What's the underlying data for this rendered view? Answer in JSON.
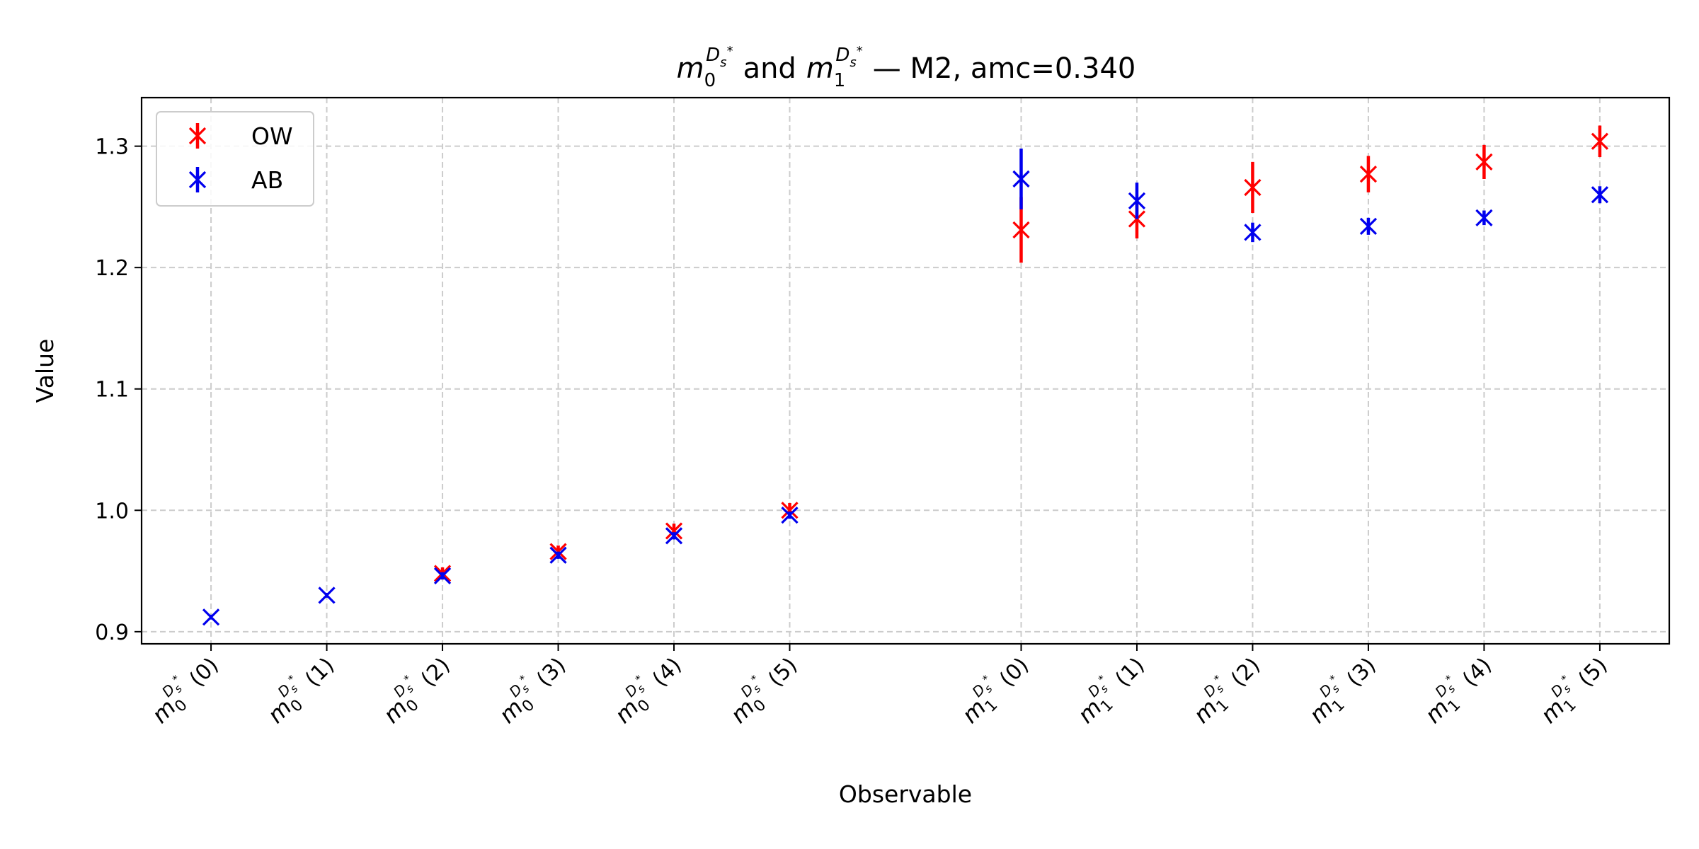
{
  "chart_data": {
    "type": "scatter",
    "title": {
      "m0": "m",
      "m0_sub": "0",
      "m0_sup": "D",
      "m0_sup_sub": "s",
      "m0_sup_star": "*",
      "and": "and",
      "m1": "m",
      "m1_sub": "1",
      "m1_sup": "D",
      "m1_sup_sub": "s",
      "m1_sup_star": "*",
      "suffix": "— M2, amc=0.340"
    },
    "xlabel": "Observable",
    "ylabel": "Value",
    "ylim": [
      0.89,
      1.34
    ],
    "yticks": [
      "0.9",
      "1.0",
      "1.1",
      "1.2",
      "1.3"
    ],
    "ytick_values": [
      0.9,
      1.0,
      1.1,
      1.2,
      1.3
    ],
    "grid": true,
    "legend": "upper-left",
    "categories": [
      {
        "base": "m",
        "sub": "0",
        "sup": "D",
        "supsub": "s",
        "star": "*",
        "arg": "(0)",
        "pos": 0
      },
      {
        "base": "m",
        "sub": "0",
        "sup": "D",
        "supsub": "s",
        "star": "*",
        "arg": "(1)",
        "pos": 1
      },
      {
        "base": "m",
        "sub": "0",
        "sup": "D",
        "supsub": "s",
        "star": "*",
        "arg": "(2)",
        "pos": 2
      },
      {
        "base": "m",
        "sub": "0",
        "sup": "D",
        "supsub": "s",
        "star": "*",
        "arg": "(3)",
        "pos": 3
      },
      {
        "base": "m",
        "sub": "0",
        "sup": "D",
        "supsub": "s",
        "star": "*",
        "arg": "(4)",
        "pos": 4
      },
      {
        "base": "m",
        "sub": "0",
        "sup": "D",
        "supsub": "s",
        "star": "*",
        "arg": "(5)",
        "pos": 5
      },
      {
        "base": "m",
        "sub": "1",
        "sup": "D",
        "supsub": "s",
        "star": "*",
        "arg": "(0)",
        "pos": 7
      },
      {
        "base": "m",
        "sub": "1",
        "sup": "D",
        "supsub": "s",
        "star": "*",
        "arg": "(1)",
        "pos": 8
      },
      {
        "base": "m",
        "sub": "1",
        "sup": "D",
        "supsub": "s",
        "star": "*",
        "arg": "(2)",
        "pos": 9
      },
      {
        "base": "m",
        "sub": "1",
        "sup": "D",
        "supsub": "s",
        "star": "*",
        "arg": "(3)",
        "pos": 10
      },
      {
        "base": "m",
        "sub": "1",
        "sup": "D",
        "supsub": "s",
        "star": "*",
        "arg": "(4)",
        "pos": 11
      },
      {
        "base": "m",
        "sub": "1",
        "sup": "D",
        "supsub": "s",
        "star": "*",
        "arg": "(5)",
        "pos": 12
      }
    ],
    "series": [
      {
        "name": "OW",
        "color": "#ff0000",
        "points": [
          {
            "x": 2,
            "y": 0.948,
            "err": 0.005
          },
          {
            "x": 3,
            "y": 0.966,
            "err": 0.005
          },
          {
            "x": 4,
            "y": 0.983,
            "err": 0.006
          },
          {
            "x": 5,
            "y": 1.0,
            "err": 0.006
          },
          {
            "x": 7,
            "y": 1.231,
            "err": 0.027
          },
          {
            "x": 8,
            "y": 1.24,
            "err": 0.016
          },
          {
            "x": 9,
            "y": 1.266,
            "err": 0.021
          },
          {
            "x": 10,
            "y": 1.277,
            "err": 0.015
          },
          {
            "x": 11,
            "y": 1.287,
            "err": 0.014
          },
          {
            "x": 12,
            "y": 1.304,
            "err": 0.013
          }
        ]
      },
      {
        "name": "AB",
        "color": "#0000ee",
        "points": [
          {
            "x": 0,
            "y": 0.912,
            "err": 0.002
          },
          {
            "x": 1,
            "y": 0.93,
            "err": 0.002
          },
          {
            "x": 2,
            "y": 0.946,
            "err": 0.003
          },
          {
            "x": 3,
            "y": 0.963,
            "err": 0.003
          },
          {
            "x": 4,
            "y": 0.979,
            "err": 0.003
          },
          {
            "x": 5,
            "y": 0.996,
            "err": 0.003
          },
          {
            "x": 7,
            "y": 1.273,
            "err": 0.025
          },
          {
            "x": 8,
            "y": 1.255,
            "err": 0.015
          },
          {
            "x": 9,
            "y": 1.229,
            "err": 0.008
          },
          {
            "x": 10,
            "y": 1.234,
            "err": 0.007
          },
          {
            "x": 11,
            "y": 1.241,
            "err": 0.006
          },
          {
            "x": 12,
            "y": 1.26,
            "err": 0.007
          }
        ]
      }
    ]
  }
}
